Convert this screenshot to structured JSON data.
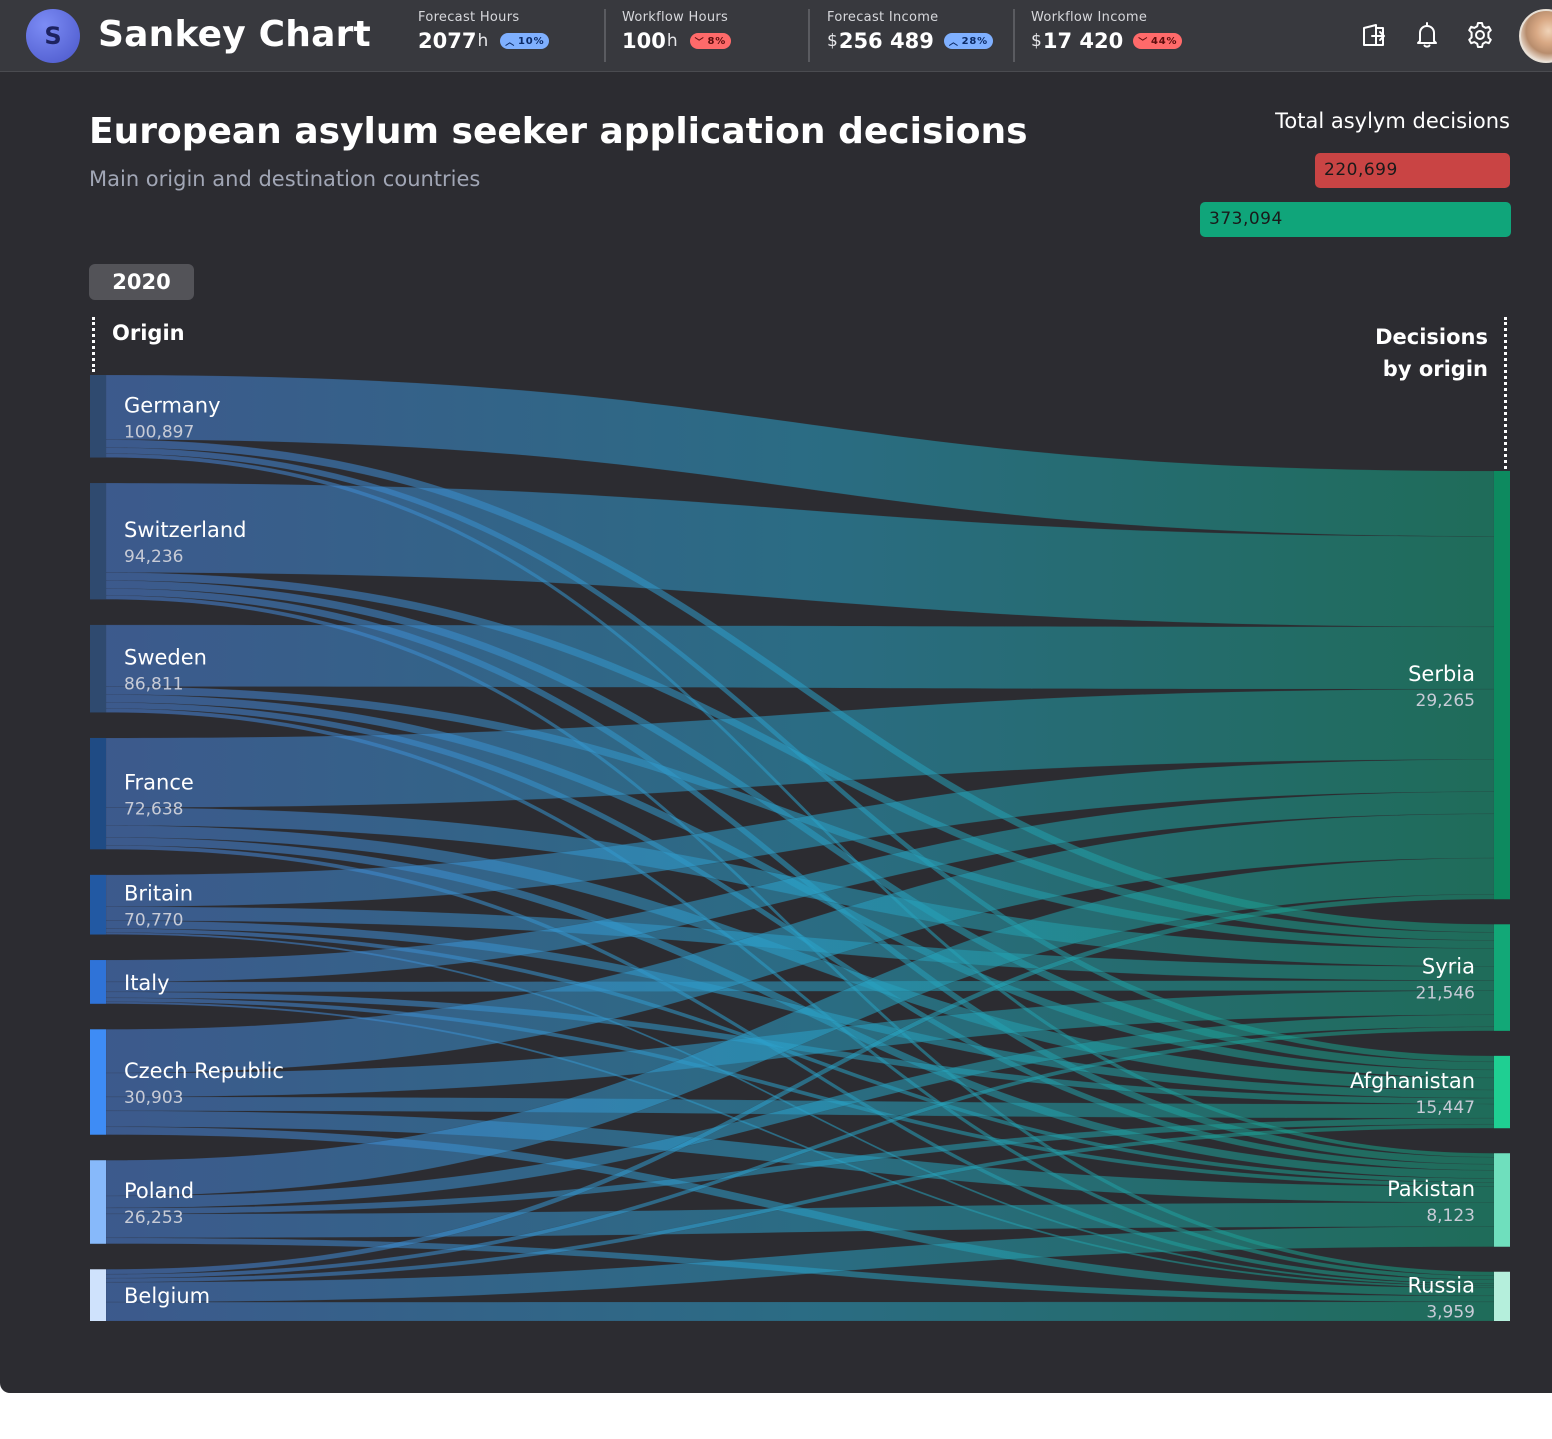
{
  "header": {
    "logo_letter": "S",
    "app_title": "Sankey Chart",
    "metrics": [
      {
        "label": "Forecast Hours",
        "value": "2077",
        "unit": "h",
        "currency": "",
        "change": "10%",
        "direction": "up"
      },
      {
        "label": "Workflow Hours",
        "value": "100",
        "unit": "h",
        "currency": "",
        "change": "8%",
        "direction": "down"
      },
      {
        "label": "Forecast Income",
        "value": "256 489",
        "unit": "",
        "currency": "$",
        "change": "28%",
        "direction": "up"
      },
      {
        "label": "Workflow Income",
        "value": "17 420",
        "unit": "",
        "currency": "$",
        "change": "44%",
        "direction": "down"
      }
    ],
    "icons": [
      "export-icon",
      "bell-icon",
      "gear-icon"
    ]
  },
  "chart": {
    "title": "European asylum seeker application decisions",
    "subtitle": "Main origin and destination countries",
    "totals_title": "Total asylym decisions",
    "totals": [
      {
        "value": "220,699",
        "color": "#c94444"
      },
      {
        "value": "373,094",
        "color": "#10a57a"
      }
    ],
    "year": "2020",
    "left_header": "Origin",
    "right_header_line1": "Decisions",
    "right_header_line2": "by origin"
  },
  "chart_data": {
    "type": "sankey",
    "sources": [
      {
        "name": "Germany",
        "value": "100,897",
        "color": "#2f4a6f"
      },
      {
        "name": "Switzerland",
        "value": "94,236",
        "color": "#2f4a6f"
      },
      {
        "name": "Sweden",
        "value": "86,811",
        "color": "#2f4a6f"
      },
      {
        "name": "France",
        "value": "72,638",
        "color": "#1f4b84"
      },
      {
        "name": "Britain",
        "value": "70,770",
        "color": "#2259a3"
      },
      {
        "name": "Italy",
        "value": "",
        "color": "#2f73d8"
      },
      {
        "name": "Czech Republic",
        "value": "30,903",
        "color": "#3e8cf5"
      },
      {
        "name": "Poland",
        "value": "26,253",
        "color": "#87b9fa"
      },
      {
        "name": "Belgium",
        "value": "",
        "color": "#cfe2fc"
      }
    ],
    "targets": [
      {
        "name": "Serbia",
        "value": "29,265",
        "color": "#0d8a5f"
      },
      {
        "name": "Syria",
        "value": "21,546",
        "color": "#12a877"
      },
      {
        "name": "Afghanistan",
        "value": "15,447",
        "color": "#1fcf92"
      },
      {
        "name": "Pakistan",
        "value": "8,123",
        "color": "#6fdfbd"
      },
      {
        "name": "Russia",
        "value": "3,959",
        "color": "#b5efdc"
      }
    ],
    "links": [
      {
        "source": "Germany",
        "target": "Serbia",
        "value": 65
      },
      {
        "source": "Germany",
        "target": "Syria",
        "value": 8
      },
      {
        "source": "Germany",
        "target": "Afghanistan",
        "value": 6
      },
      {
        "source": "Germany",
        "target": "Pakistan",
        "value": 4
      },
      {
        "source": "Switzerland",
        "target": "Serbia",
        "value": 90
      },
      {
        "source": "Switzerland",
        "target": "Syria",
        "value": 8
      },
      {
        "source": "Switzerland",
        "target": "Afghanistan",
        "value": 8
      },
      {
        "source": "Switzerland",
        "target": "Pakistan",
        "value": 7
      },
      {
        "source": "Switzerland",
        "target": "Russia",
        "value": 4
      },
      {
        "source": "Sweden",
        "target": "Serbia",
        "value": 62
      },
      {
        "source": "Sweden",
        "target": "Syria",
        "value": 8
      },
      {
        "source": "Sweden",
        "target": "Afghanistan",
        "value": 8
      },
      {
        "source": "Sweden",
        "target": "Pakistan",
        "value": 6
      },
      {
        "source": "Sweden",
        "target": "Russia",
        "value": 4
      },
      {
        "source": "France",
        "target": "Serbia",
        "value": 70
      },
      {
        "source": "France",
        "target": "Syria",
        "value": 18
      },
      {
        "source": "France",
        "target": "Afghanistan",
        "value": 12
      },
      {
        "source": "France",
        "target": "Pakistan",
        "value": 8
      },
      {
        "source": "France",
        "target": "Russia",
        "value": 4
      },
      {
        "source": "Britain",
        "target": "Serbia",
        "value": 32
      },
      {
        "source": "Britain",
        "target": "Syria",
        "value": 14
      },
      {
        "source": "Britain",
        "target": "Afghanistan",
        "value": 8
      },
      {
        "source": "Britain",
        "target": "Pakistan",
        "value": 4
      },
      {
        "source": "Britain",
        "target": "Russia",
        "value": 2
      },
      {
        "source": "Italy",
        "target": "Serbia",
        "value": 22
      },
      {
        "source": "Italy",
        "target": "Syria",
        "value": 10
      },
      {
        "source": "Italy",
        "target": "Afghanistan",
        "value": 6
      },
      {
        "source": "Italy",
        "target": "Pakistan",
        "value": 4
      },
      {
        "source": "Italy",
        "target": "Russia",
        "value": 2
      },
      {
        "source": "Czech Republic",
        "target": "Serbia",
        "value": 44
      },
      {
        "source": "Czech Republic",
        "target": "Syria",
        "value": 24
      },
      {
        "source": "Czech Republic",
        "target": "Afghanistan",
        "value": 14
      },
      {
        "source": "Czech Republic",
        "target": "Pakistan",
        "value": 16
      },
      {
        "source": "Czech Republic",
        "target": "Russia",
        "value": 8
      },
      {
        "source": "Poland",
        "target": "Serbia",
        "value": 36
      },
      {
        "source": "Poland",
        "target": "Syria",
        "value": 12
      },
      {
        "source": "Poland",
        "target": "Afghanistan",
        "value": 6
      },
      {
        "source": "Poland",
        "target": "Pakistan",
        "value": 24
      },
      {
        "source": "Poland",
        "target": "Russia",
        "value": 6
      },
      {
        "source": "Belgium",
        "target": "Serbia",
        "value": 5
      },
      {
        "source": "Belgium",
        "target": "Syria",
        "value": 4
      },
      {
        "source": "Belgium",
        "target": "Afghanistan",
        "value": 4
      },
      {
        "source": "Belgium",
        "target": "Pakistan",
        "value": 20
      },
      {
        "source": "Belgium",
        "target": "Russia",
        "value": 19
      }
    ]
  }
}
